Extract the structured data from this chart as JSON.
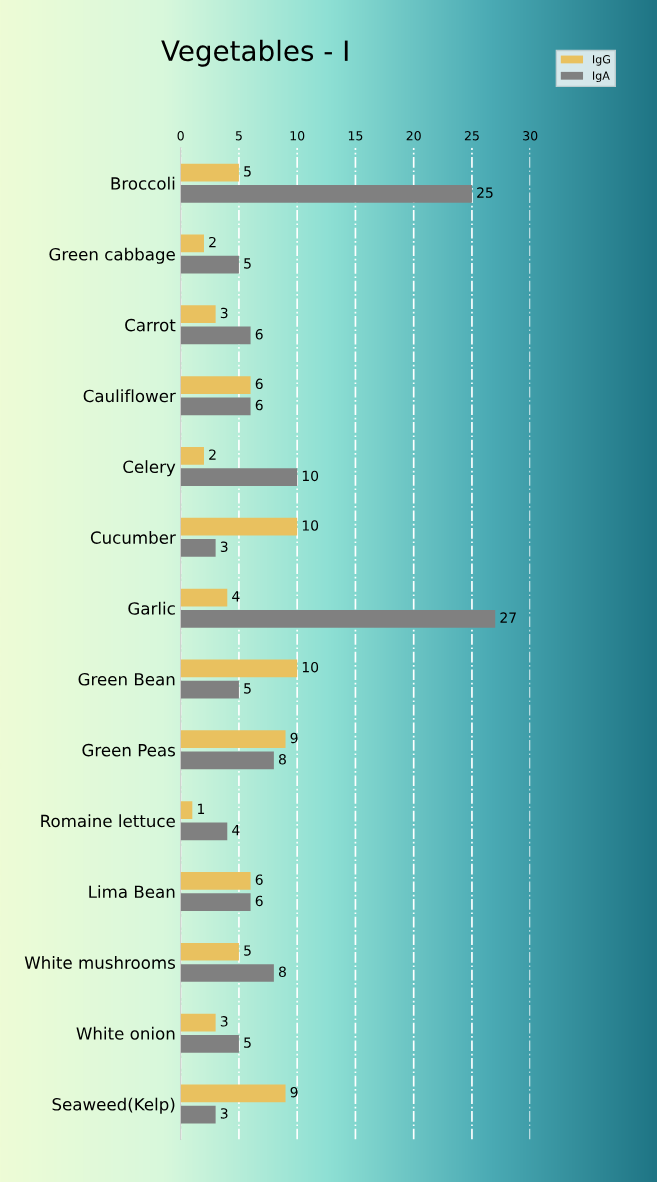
{
  "chart_data": {
    "type": "bar",
    "orientation": "horizontal",
    "title": "Vegetables - I",
    "categories": [
      "Broccoli",
      "Green cabbage",
      "Carrot",
      "Cauliflower",
      "Celery",
      "Cucumber",
      "Garlic",
      "Green Bean",
      "Green Peas",
      "Romaine lettuce",
      "Lima Bean",
      "White mushrooms",
      "White onion",
      "Seaweed(Kelp)"
    ],
    "series": [
      {
        "name": "IgG",
        "color": "#e9c15f",
        "values": [
          5,
          2,
          3,
          6,
          2,
          10,
          4,
          10,
          9,
          1,
          6,
          5,
          3,
          9
        ]
      },
      {
        "name": "IgA",
        "color": "#808080",
        "values": [
          25,
          5,
          6,
          6,
          10,
          3,
          27,
          5,
          8,
          4,
          6,
          8,
          5,
          3
        ]
      }
    ],
    "xlim": [
      0,
      30
    ],
    "xticks": [
      0,
      5,
      10,
      15,
      20,
      25,
      30
    ],
    "grid": "x",
    "legend": "top right",
    "data_labels": true
  }
}
